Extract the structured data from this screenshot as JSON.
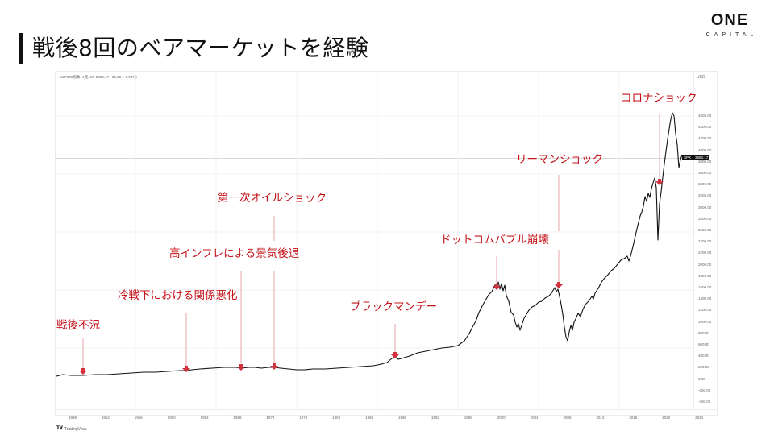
{
  "slide": {
    "title": "戦後8回のベアマーケットを経験",
    "logo": {
      "main": "ONE",
      "sub": "CAPITAL"
    }
  },
  "chart_header": {
    "info": "S&P500指数, 1週, SP  3863.17  −36.20 (−0.93%)",
    "currency": "USD",
    "price_tag": {
      "symbol": "SPX",
      "value": "3863.17"
    },
    "watermark": "TradingView"
  },
  "colors": {
    "annotation": "#c4141a",
    "arrow": "#d0323f",
    "leader_line": "#e7a3a8",
    "price_line": "#111111",
    "grid": "#f3f3f3"
  },
  "chart_data": {
    "type": "line",
    "title": "戦後8回のベアマーケットを経験",
    "series": [
      {
        "name": "S&P500 (SPX), weekly",
        "color": "#111111"
      }
    ],
    "xlabel": "",
    "ylabel": "USD",
    "x_ticks": [
      "1938",
      "1952",
      "1956",
      "1960",
      "1964",
      "1968",
      "1972",
      "1976",
      "1980",
      "1984",
      "1988",
      "1992",
      "1996",
      "2000",
      "2004",
      "2008",
      "2012",
      "2016",
      "2020",
      "2024"
    ],
    "y_ticks": [
      "4600.00",
      "4400.00",
      "4200.00",
      "4000.00",
      "3800.00",
      "3600.00",
      "3400.00",
      "3200.00",
      "3000.00",
      "2800.00",
      "2600.00",
      "2400.00",
      "2200.00",
      "2000.00",
      "1800.00",
      "1600.00",
      "1400.00",
      "1200.00",
      "1000.00",
      "800.00",
      "600.00",
      "400.00",
      "200.00",
      "0.00",
      "-200.00",
      "-400.00"
    ],
    "ylim": [
      -400,
      4800
    ],
    "grid": true,
    "legend": "none",
    "last_value": 3863.17,
    "approx_points": [
      {
        "x": 1946,
        "y": 15
      },
      {
        "x": 1949,
        "y": 15
      },
      {
        "x": 1953,
        "y": 25
      },
      {
        "x": 1957,
        "y": 45
      },
      {
        "x": 1961,
        "y": 70
      },
      {
        "x": 1962,
        "y": 55
      },
      {
        "x": 1966,
        "y": 90
      },
      {
        "x": 1968,
        "y": 105
      },
      {
        "x": 1970,
        "y": 75
      },
      {
        "x": 1972,
        "y": 118
      },
      {
        "x": 1974,
        "y": 65
      },
      {
        "x": 1976,
        "y": 105
      },
      {
        "x": 1980,
        "y": 120
      },
      {
        "x": 1982,
        "y": 110
      },
      {
        "x": 1985,
        "y": 190
      },
      {
        "x": 1987,
        "y": 320
      },
      {
        "x": 1988,
        "y": 255
      },
      {
        "x": 1990,
        "y": 340
      },
      {
        "x": 1994,
        "y": 460
      },
      {
        "x": 1996,
        "y": 700
      },
      {
        "x": 1998,
        "y": 1100
      },
      {
        "x": 2000,
        "y": 1520
      },
      {
        "x": 2002,
        "y": 850
      },
      {
        "x": 2003,
        "y": 800
      },
      {
        "x": 2005,
        "y": 1200
      },
      {
        "x": 2007,
        "y": 1560
      },
      {
        "x": 2009,
        "y": 680
      },
      {
        "x": 2011,
        "y": 1300
      },
      {
        "x": 2014,
        "y": 2000
      },
      {
        "x": 2016,
        "y": 2050
      },
      {
        "x": 2018,
        "y": 2900
      },
      {
        "x": 2019,
        "y": 2450
      },
      {
        "x": 2020.1,
        "y": 3380
      },
      {
        "x": 2020.2,
        "y": 2240
      },
      {
        "x": 2021,
        "y": 3800
      },
      {
        "x": 2022,
        "y": 4790
      },
      {
        "x": 2022.5,
        "y": 3700
      },
      {
        "x": 2022.8,
        "y": 3863
      }
    ],
    "annotations": [
      {
        "label": "戦後不況",
        "year": 1948
      },
      {
        "label": "冷戦下における関係悪化",
        "year": 1962
      },
      {
        "label": "高インフレによる景気後退",
        "year": 1969
      },
      {
        "label": "第一次オイルショック",
        "year": 1973
      },
      {
        "label": "ブラックマンデー",
        "year": 1987
      },
      {
        "label": "ドットコムバブル崩壊",
        "year": 2000
      },
      {
        "label": "リーマンショック",
        "year": 2007
      },
      {
        "label": "コロナショック",
        "year": 2020
      }
    ]
  }
}
